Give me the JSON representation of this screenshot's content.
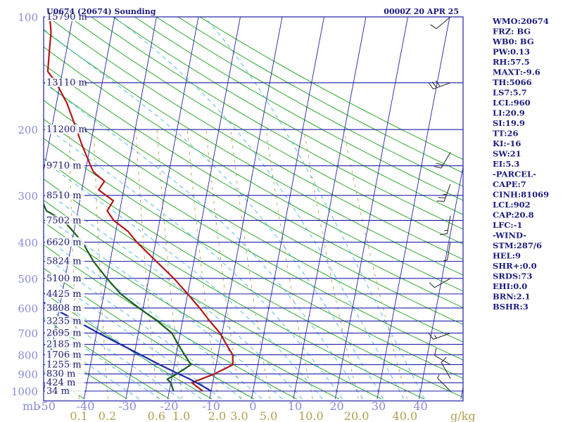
{
  "title_left": "U0674 (20674) Sounding",
  "title_right": "0000Z 20 APR 25",
  "units_mb": "mb",
  "units_gkg": "g/kg",
  "colors": {
    "isobar": "#1f1fa6",
    "isotherm": "#2424a0",
    "dry_adiabat": "#19a019",
    "moist_adiabat": "#46b4e6",
    "mixing_ratio": "#b4a050",
    "temperature": "#b01818",
    "dewpoint": "#1a5c1a",
    "parcel": "#1a2aa8",
    "text": "#1a1a7a"
  },
  "pressure_labels": [
    "100",
    "200",
    "300",
    "400",
    "500",
    "600",
    "700",
    "800",
    "900",
    "1000"
  ],
  "altitude_labels": [
    "15790 m",
    "13110 m",
    "11200 m",
    "9710 m",
    "8510 m",
    "7502 m",
    "6620 m",
    "5824 m",
    "5100 m",
    "4425 m",
    "3808 m",
    "3235 m",
    "2695 m",
    "2185 m",
    "1706 m",
    "1255 m",
    "830 m",
    "424 m",
    "34 m"
  ],
  "temp_ticks": [
    "-50",
    "-40",
    "-30",
    "-20",
    "-10",
    "0",
    "10",
    "20",
    "30",
    "40"
  ],
  "mixing_ratio_ticks": [
    "0.1",
    "0.2",
    "0.6",
    "1.0",
    "2.0",
    "3.0",
    "5.0",
    "10.0",
    "20.0",
    "40.0"
  ],
  "indices": [
    "WMO:20674",
    "FRZ: BG",
    "WB0: BG",
    "PW:0.13",
    "RH:57.5",
    "MAXT:-9.6",
    "TH:5066",
    "LS7:5.7",
    "LCL:960",
    "LI:20.9",
    "SI:19.9",
    "TT:26",
    "KI:-16",
    "SW:21",
    "EI:5.3",
    "-PARCEL-",
    "CAPE:7",
    "CINH:81069",
    "LCL:902",
    "CAP:20.8",
    "LFC:-1",
    "-WIND-",
    "STM:287/6",
    "HEL:9",
    "SHR+:0.0",
    "SRDS:73",
    "EHI:0.0",
    "BRN:2.1",
    "BSHR:3"
  ],
  "chart_data": {
    "type": "line",
    "chart_kind": "skew-T log-P sounding",
    "x_axis": "temperature (C)",
    "y_axis": "pressure (mb), log scale",
    "xlim": [
      -50,
      50
    ],
    "ylim": [
      1000,
      100
    ],
    "pressure_levels": [
      1000,
      925,
      850,
      800,
      700,
      600,
      500,
      400,
      300,
      250,
      200,
      150,
      100
    ],
    "altitudes_m": [
      34,
      424,
      830,
      1255,
      1706,
      2185,
      2695,
      3235,
      3808,
      4425,
      5100,
      5824,
      6620,
      7502,
      8510,
      9710,
      11200,
      13110,
      15790
    ],
    "series": [
      {
        "role": "temperature",
        "points": [
          [
            1000,
            -12.0
          ],
          [
            950,
            -15.0
          ],
          [
            930,
            -13.0
          ],
          [
            900,
            -10.0
          ],
          [
            850,
            -6.0
          ],
          [
            800,
            -6.5
          ],
          [
            750,
            -8.5
          ],
          [
            700,
            -10.5
          ],
          [
            650,
            -13.5
          ],
          [
            600,
            -16.5
          ],
          [
            550,
            -20.0
          ],
          [
            500,
            -24.0
          ],
          [
            450,
            -29.0
          ],
          [
            400,
            -34.5
          ],
          [
            375,
            -37.0
          ],
          [
            350,
            -41.0
          ],
          [
            330,
            -43.0
          ],
          [
            310,
            -42.0
          ],
          [
            290,
            -46.0
          ],
          [
            275,
            -45.0
          ],
          [
            260,
            -48.0
          ],
          [
            250,
            -49.0
          ],
          [
            220,
            -52.0
          ],
          [
            200,
            -54.0
          ],
          [
            170,
            -57.5
          ],
          [
            150,
            -61.0
          ],
          [
            140,
            -63.5
          ],
          [
            125,
            -64.0
          ],
          [
            110,
            -64.5
          ],
          [
            100,
            -65.5
          ]
        ]
      },
      {
        "role": "dewpoint",
        "points": [
          [
            1000,
            -19.0
          ],
          [
            950,
            -20.0
          ],
          [
            930,
            -21.0
          ],
          [
            900,
            -19.0
          ],
          [
            850,
            -16.0
          ],
          [
            800,
            -18.0
          ],
          [
            750,
            -20.0
          ],
          [
            700,
            -22.0
          ],
          [
            650,
            -26.0
          ],
          [
            600,
            -31.0
          ],
          [
            550,
            -36.0
          ],
          [
            500,
            -40.0
          ],
          [
            450,
            -44.0
          ],
          [
            400,
            -47.5
          ],
          [
            350,
            -53.0
          ],
          [
            330,
            -57.5
          ],
          [
            310,
            -59.0
          ],
          [
            295,
            -62.0
          ],
          [
            280,
            -62.0
          ],
          [
            260,
            -62.5
          ],
          [
            230,
            -65.0
          ],
          [
            200,
            -67.0
          ],
          [
            170,
            -70.5
          ],
          [
            150,
            -73.5
          ],
          [
            125,
            -76.0
          ],
          [
            110,
            -77.5
          ],
          [
            100,
            -77.0
          ]
        ]
      },
      {
        "role": "parcel",
        "points": [
          [
            1000,
            -10.0
          ],
          [
            960,
            -13.0
          ],
          [
            925,
            -16.0
          ],
          [
            900,
            -18.5
          ],
          [
            850,
            -23.5
          ],
          [
            800,
            -28.5
          ],
          [
            700,
            -39.5
          ],
          [
            600,
            -51.5
          ],
          [
            500,
            -65.0
          ],
          [
            400,
            -80.5
          ],
          [
            300,
            -99.5
          ],
          [
            200,
            -125.0
          ],
          [
            150,
            -141.0
          ],
          [
            115,
            -155.0
          ]
        ]
      }
    ],
    "wind_barbs": [
      {
        "p": 1000,
        "dir": 315,
        "spd": 5
      },
      {
        "p": 925,
        "dir": 330,
        "spd": 10
      },
      {
        "p": 850,
        "dir": 300,
        "spd": 10
      },
      {
        "p": 700,
        "dir": 250,
        "spd": 15
      },
      {
        "p": 500,
        "dir": 240,
        "spd": 10
      },
      {
        "p": 400,
        "dir": 190,
        "spd": 5
      },
      {
        "p": 340,
        "dir": 190,
        "spd": 15
      },
      {
        "p": 280,
        "dir": 200,
        "spd": 25
      },
      {
        "p": 230,
        "dir": 210,
        "spd": 20
      },
      {
        "p": 150,
        "dir": 250,
        "spd": 30
      },
      {
        "p": 100,
        "dir": 230,
        "spd": 10
      }
    ],
    "grid": true
  }
}
